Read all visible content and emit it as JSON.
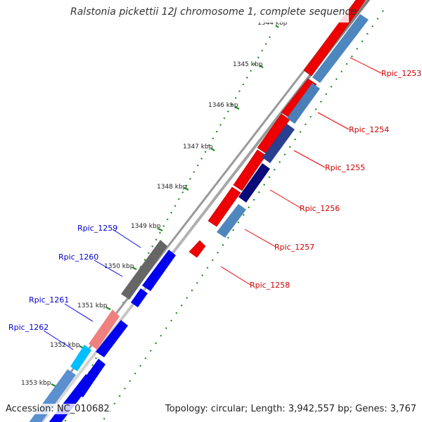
{
  "title": "Ralstonia pickettii 12J chromosome 1, complete sequence",
  "accession": "Accession: NC_010682",
  "topology": "Topology: circular; Length: 3,942,557 bp; Genes: 3,767",
  "colors": {
    "forward_gene": "#ff0000",
    "reverse_gene": "#0000ee",
    "forward_label": "#cc0000",
    "reverse_label": "#0000cc",
    "tick": "#228b22",
    "backbone": "#8c8c8c"
  },
  "kbp_labels": [
    "1344 kbp",
    "1345 kbp",
    "1346 kbp",
    "1347 kbp",
    "1348 kbp",
    "1349 kbp",
    "1350 kbp",
    "1351 kbp",
    "1352 kbp",
    "1353 kbp"
  ],
  "forward_labels": [
    "Rpic_1253",
    "Rpic_1254",
    "Rpic_1255",
    "Rpic_1256",
    "Rpic_1257",
    "Rpic_1258"
  ],
  "reverse_labels": [
    "Rpic_1259",
    "Rpic_1260",
    "Rpic_1261",
    "Rpic_1262"
  ]
}
